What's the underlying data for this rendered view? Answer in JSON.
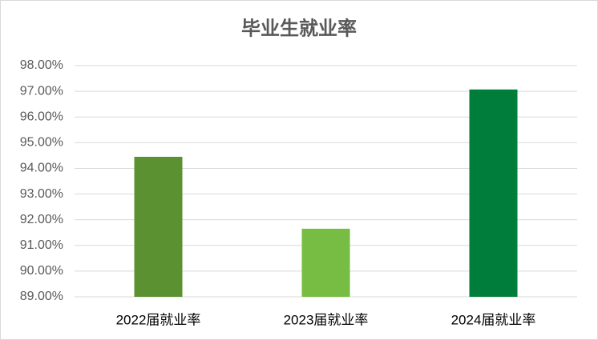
{
  "chart_data": {
    "type": "bar",
    "title": "毕业生就业率",
    "categories": [
      "2022届就业率",
      "2023届就业率",
      "2024届就业率"
    ],
    "values": [
      94.45,
      91.65,
      97.07
    ],
    "colors": [
      "#5b9131",
      "#77bd43",
      "#007d3a"
    ],
    "ylim": [
      89,
      98
    ],
    "yticks": [
      {
        "value": 89,
        "label": "89.00%"
      },
      {
        "value": 90,
        "label": "90.00%"
      },
      {
        "value": 91,
        "label": "91.00%"
      },
      {
        "value": 92,
        "label": "92.00%"
      },
      {
        "value": 93,
        "label": "93.00%"
      },
      {
        "value": 94,
        "label": "94.00%"
      },
      {
        "value": 95,
        "label": "95.00%"
      },
      {
        "value": 96,
        "label": "96.00%"
      },
      {
        "value": 97,
        "label": "97.00%"
      },
      {
        "value": 98,
        "label": "98.00%"
      }
    ],
    "grid": true
  }
}
